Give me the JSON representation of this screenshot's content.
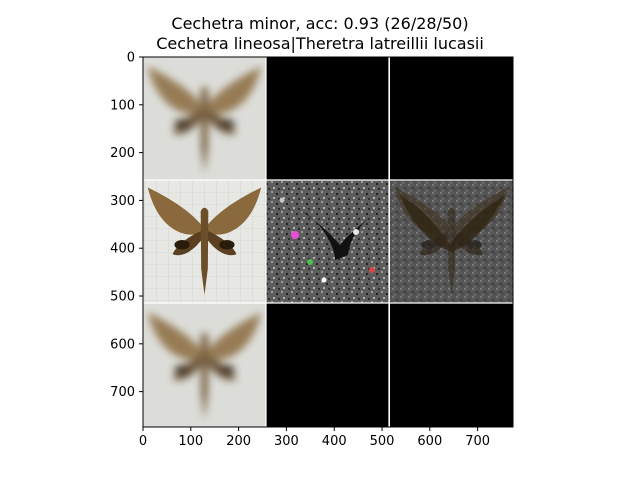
{
  "figure": {
    "title_line1": "Cechetra minor, acc: 0.93 (26/28/50)",
    "title_line2": "Cechetra lineosa|Theretra latreillii lucasii"
  },
  "axes": {
    "x_ticks": [
      "0",
      "100",
      "200",
      "300",
      "400",
      "500",
      "600",
      "700"
    ],
    "y_ticks": [
      "0",
      "100",
      "200",
      "300",
      "400",
      "500",
      "600",
      "700"
    ],
    "x_range": [
      0,
      774
    ],
    "y_range": [
      0,
      774
    ]
  },
  "grid": {
    "rows": 3,
    "cols": 3,
    "tile_size": 258,
    "tiles": [
      [
        "blurred moth",
        "black",
        "black"
      ],
      [
        "moth photo",
        "noise attribution",
        "masked moth"
      ],
      [
        "blurred moth",
        "black",
        "black"
      ]
    ]
  },
  "colors": {
    "background": "#ffffff",
    "moth_brown": "#6e5330",
    "black_tile": "#000000",
    "separator": "#ffffff"
  }
}
